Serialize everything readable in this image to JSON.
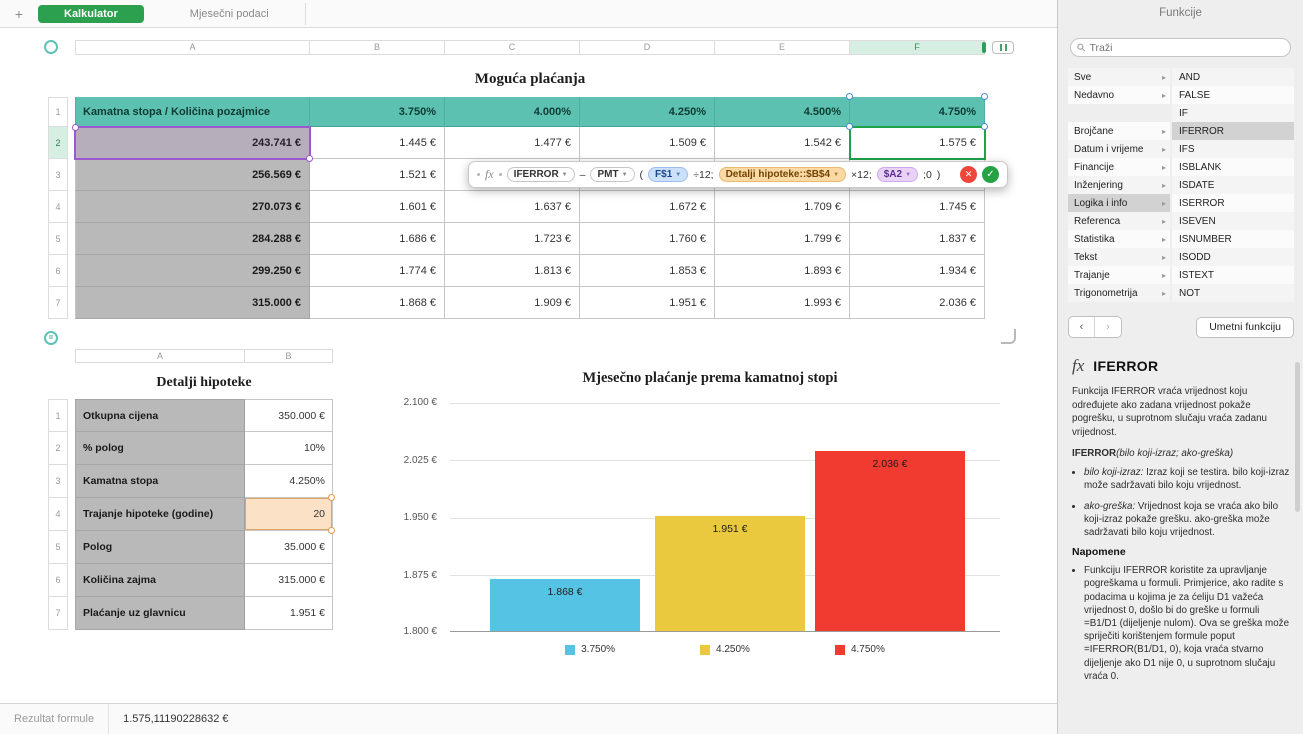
{
  "window": {
    "add_tab": "+",
    "tabs": [
      {
        "label": "Kalkulator"
      },
      {
        "label": "Mjesečni podaci"
      }
    ],
    "status_label": "Rezultat formule",
    "status_value": "1.575,11190228632 €"
  },
  "sheet": {
    "title": "Moguća plaćanja",
    "add_row_glyph": "=",
    "col_letters": [
      "A",
      "B",
      "C",
      "D",
      "E",
      "F"
    ],
    "row_numbers": [
      "1",
      "2",
      "3",
      "4",
      "5",
      "6",
      "7"
    ],
    "header": [
      "Kamatna stopa / Količina pozajmice",
      "3.750%",
      "4.000%",
      "4.250%",
      "4.500%",
      "4.750%"
    ],
    "rows": [
      [
        "243.741 €",
        "1.445 €",
        "1.477 €",
        "1.509 €",
        "1.542 €",
        "1.575 €"
      ],
      [
        "256.569 €",
        "1.521 €",
        "",
        "",
        "",
        ""
      ],
      [
        "270.073 €",
        "1.601 €",
        "1.637 €",
        "1.672 €",
        "1.709 €",
        "1.745 €"
      ],
      [
        "284.288 €",
        "1.686 €",
        "1.723 €",
        "1.760 €",
        "1.799 €",
        "1.837 €"
      ],
      [
        "299.250 €",
        "1.774 €",
        "1.813 €",
        "1.853 €",
        "1.893 €",
        "1.934 €"
      ],
      [
        "315.000 €",
        "1.868 €",
        "1.909 €",
        "1.951 €",
        "1.993 €",
        "2.036 €"
      ]
    ]
  },
  "formula": {
    "fx": "fx",
    "dd": "▼",
    "t_iferror": "IFERROR",
    "t_minus": "–",
    "t_pmt": "PMT",
    "t_open": "(",
    "t_ref1": "F$1",
    "t_div": "÷12;",
    "t_ref2": "Detalji hipoteke::$B$4",
    "t_mul": "×12;",
    "t_ref3": "$A2",
    "t_zero": ";0",
    "t_close": ")",
    "cancel_glyph": "✕",
    "ok_glyph": "✓"
  },
  "detail": {
    "title": "Detalji hipoteke",
    "col_letters": [
      "A",
      "B"
    ],
    "row_numbers": [
      "1",
      "2",
      "3",
      "4",
      "5",
      "6",
      "7"
    ],
    "rows": [
      {
        "label": "Otkupna cijena",
        "value": "350.000 €"
      },
      {
        "label": "% polog",
        "value": "10%"
      },
      {
        "label": "Kamatna stopa",
        "value": "4.250%"
      },
      {
        "label": "Trajanje hipoteke (godine)",
        "value": "20"
      },
      {
        "label": "Polog",
        "value": "35.000 €"
      },
      {
        "label": "Količina zajma",
        "value": "315.000 €"
      },
      {
        "label": "Plaćanje uz glavnicu",
        "value": "1.951 €"
      }
    ]
  },
  "chart_data": {
    "type": "bar",
    "title": "Mjesečno plaćanje prema kamatnoj stopi",
    "categories": [
      "3.750%",
      "4.250%",
      "4.750%"
    ],
    "values": [
      1868,
      1951,
      2036
    ],
    "value_labels": [
      "1.868 €",
      "1.951 €",
      "2.036 €"
    ],
    "colors": [
      "#55c4e4",
      "#eac93f",
      "#f13b30"
    ],
    "ylim": [
      1800,
      2100
    ],
    "ytick_labels": [
      "2.100 €",
      "2.025 €",
      "1.950 €",
      "1.875 €",
      "1.800 €"
    ],
    "legend": [
      "3.750%",
      "4.250%",
      "4.750%"
    ],
    "legend_position": "bottom",
    "grid": true
  },
  "sidebar": {
    "title": "Funkcije",
    "search_placeholder": "Traži",
    "category_chevron": "▸",
    "pager_prev": "‹",
    "pager_next": "›",
    "categories": [
      "Sve",
      "Nedavno",
      "",
      "Brojčane",
      "Datum i vrijeme",
      "Financije",
      "Inženjering",
      "Logika i info",
      "Referenca",
      "Statistika",
      "Tekst",
      "Trajanje",
      "Trigonometrija"
    ],
    "functions": [
      "AND",
      "FALSE",
      "IF",
      "IFERROR",
      "IFS",
      "ISBLANK",
      "ISDATE",
      "ISERROR",
      "ISEVEN",
      "ISNUMBER",
      "ISODD",
      "ISTEXT",
      "NOT"
    ],
    "insert_button": "Umetni funkciju",
    "doc": {
      "fx": "fx",
      "title": "IFERROR",
      "description": "Funkcija IFERROR vraća vrijednost koju određujete ako zadana vrijednost pokaže pogrešku, u suprotnom slučaju vraća zadanu vrijednost.",
      "sig_name": "IFERROR",
      "sig_args": "(bilo koji-izraz; ako-greška)",
      "param1_name": "bilo koji-izraz:",
      "param1_text": " Izraz koji se testira. bilo koji-izraz može sadržavati bilo koju vrijednost.",
      "param2_name": "ako-greška:",
      "param2_text": " Vrijednost koja se vraća ako bilo koji-izraz pokaže grešku. ako-greška može sadržavati bilo koju vrijednost.",
      "notes_title": "Napomene",
      "note1": "Funkciju IFERROR koristite za upravljanje pogreškama u formuli. Primjerice, ako radite s podacima u kojima je za ćeliju D1 važeća vrijednost 0, došlo bi do greške u formuli =B1/D1 (dijeljenje nulom). Ova se greška može spriječiti korištenjem formule poput =IFERROR(B1/D1, 0), koja vraća stvarno dijeljenje ako D1 nije 0, u suprotnom slučaju vraća 0."
    }
  }
}
